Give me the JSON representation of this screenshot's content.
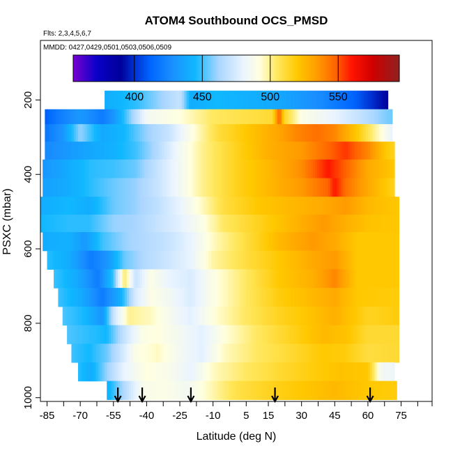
{
  "chart_data": {
    "type": "heatmap",
    "title": "ATOM4 Southbound OCS_PMSD",
    "flights_note": "Flts: 2,3,4,5,6,7",
    "dates_note": "MMDD: 0427,0429,0501,0503,0506,0509",
    "xlabel": "Latitude (deg N)",
    "ylabel": "PSXC (mbar)",
    "xlim": [
      -88,
      89
    ],
    "ylim": [
      1010,
      40
    ],
    "x_tick_labels": [
      "-85",
      "-70",
      "-55",
      "-40",
      "-25",
      "-10",
      "5",
      "15",
      "30",
      "45",
      "60",
      "75"
    ],
    "x_tick_values": [
      -85,
      -70,
      -55,
      -40,
      -25,
      -10,
      5,
      15,
      30,
      45,
      60,
      75
    ],
    "x_minor_ticks": [
      -85,
      -77.5,
      -70,
      -62.5,
      -55,
      -47.5,
      -40,
      -32.5,
      -25,
      -17.5,
      -10,
      -2.5,
      5,
      15,
      22.5,
      30,
      37.5,
      45,
      52.5,
      60,
      67.5,
      75,
      82.5,
      89
    ],
    "y_tick_labels": [
      "200",
      "400",
      "600",
      "800",
      "1000"
    ],
    "y_tick_values": [
      200,
      400,
      600,
      800,
      1000
    ],
    "colorbar": {
      "min": 355,
      "max": 595,
      "tick_labels": [
        "400",
        "450",
        "500",
        "550"
      ],
      "tick_values": [
        400,
        450,
        500,
        550
      ],
      "stops": [
        [
          355,
          "#7a00d0"
        ],
        [
          372,
          "#0a00c8"
        ],
        [
          390,
          "#00009a"
        ],
        [
          400,
          "#0030d0"
        ],
        [
          412,
          "#0066ff"
        ],
        [
          428,
          "#1a90ff"
        ],
        [
          445,
          "#10b8ff"
        ],
        [
          462,
          "#aad6ff"
        ],
        [
          480,
          "#eaf4ff"
        ],
        [
          492,
          "#ffffe0"
        ],
        [
          505,
          "#ffe860"
        ],
        [
          520,
          "#ffc800"
        ],
        [
          535,
          "#ff9a00"
        ],
        [
          548,
          "#ff6400"
        ],
        [
          560,
          "#ff1400"
        ],
        [
          575,
          "#d00000"
        ],
        [
          595,
          "#902020"
        ]
      ]
    },
    "bands": [
      {
        "p0": 175,
        "p1": 225,
        "lat_min": -59,
        "lat_max": 69,
        "knots": [
          [
            -59,
            440
          ],
          [
            -45,
            448
          ],
          [
            -25,
            470
          ],
          [
            -20,
            440
          ],
          [
            -8,
            445
          ],
          [
            20,
            438
          ],
          [
            40,
            425
          ],
          [
            55,
            410
          ],
          [
            65,
            395
          ],
          [
            69,
            390
          ]
        ]
      },
      {
        "p0": 225,
        "p1": 265,
        "lat_min": -86,
        "lat_max": 71,
        "knots": [
          [
            -86,
            410
          ],
          [
            -80,
            420
          ],
          [
            -70,
            432
          ],
          [
            -60,
            420
          ],
          [
            -55,
            430
          ],
          [
            -40,
            485
          ],
          [
            -25,
            492
          ],
          [
            -10,
            505
          ],
          [
            10,
            510
          ],
          [
            17,
            512
          ],
          [
            20,
            550
          ],
          [
            22,
            515
          ],
          [
            30,
            490
          ],
          [
            45,
            480
          ],
          [
            55,
            470
          ],
          [
            65,
            460
          ],
          [
            71,
            455
          ]
        ]
      },
      {
        "p0": 265,
        "p1": 312,
        "lat_min": -86,
        "lat_max": 71,
        "knots": [
          [
            -86,
            418
          ],
          [
            -78,
            430
          ],
          [
            -70,
            460
          ],
          [
            -60,
            438
          ],
          [
            -50,
            445
          ],
          [
            -40,
            460
          ],
          [
            -30,
            470
          ],
          [
            -20,
            490
          ],
          [
            -8,
            510
          ],
          [
            5,
            520
          ],
          [
            18,
            530
          ],
          [
            28,
            540
          ],
          [
            37,
            545
          ],
          [
            45,
            540
          ],
          [
            55,
            520
          ],
          [
            65,
            495
          ],
          [
            71,
            480
          ]
        ]
      },
      {
        "p0": 312,
        "p1": 360,
        "lat_min": -86,
        "lat_max": 72,
        "knots": [
          [
            -86,
            425
          ],
          [
            -75,
            432
          ],
          [
            -65,
            438
          ],
          [
            -55,
            442
          ],
          [
            -45,
            450
          ],
          [
            -35,
            465
          ],
          [
            -25,
            485
          ],
          [
            -15,
            500
          ],
          [
            0,
            515
          ],
          [
            15,
            528
          ],
          [
            30,
            535
          ],
          [
            40,
            545
          ],
          [
            50,
            555
          ],
          [
            60,
            540
          ],
          [
            68,
            520
          ],
          [
            72,
            515
          ]
        ]
      },
      {
        "p0": 360,
        "p1": 410,
        "lat_min": -87,
        "lat_max": 72,
        "knots": [
          [
            -87,
            430
          ],
          [
            -75,
            440
          ],
          [
            -65,
            448
          ],
          [
            -55,
            450
          ],
          [
            -45,
            455
          ],
          [
            -35,
            470
          ],
          [
            -25,
            485
          ],
          [
            -15,
            500
          ],
          [
            0,
            515
          ],
          [
            15,
            525
          ],
          [
            30,
            538
          ],
          [
            42,
            560
          ],
          [
            50,
            548
          ],
          [
            60,
            530
          ],
          [
            72,
            520
          ]
        ]
      },
      {
        "p0": 410,
        "p1": 460,
        "lat_min": -87,
        "lat_max": 72,
        "knots": [
          [
            -87,
            435
          ],
          [
            -75,
            440
          ],
          [
            -65,
            448
          ],
          [
            -55,
            455
          ],
          [
            -45,
            460
          ],
          [
            -35,
            470
          ],
          [
            -25,
            485
          ],
          [
            -15,
            500
          ],
          [
            0,
            515
          ],
          [
            15,
            525
          ],
          [
            30,
            535
          ],
          [
            42,
            548
          ],
          [
            45,
            560
          ],
          [
            50,
            545
          ],
          [
            60,
            530
          ],
          [
            72,
            515
          ]
        ]
      },
      {
        "p0": 460,
        "p1": 508,
        "lat_min": -88,
        "lat_max": 74,
        "knots": [
          [
            -88,
            440
          ],
          [
            -75,
            445
          ],
          [
            -66,
            440
          ],
          [
            -55,
            455
          ],
          [
            -45,
            460
          ],
          [
            -35,
            468
          ],
          [
            -25,
            480
          ],
          [
            -15,
            495
          ],
          [
            -5,
            510
          ],
          [
            10,
            520
          ],
          [
            25,
            525
          ],
          [
            40,
            530
          ],
          [
            50,
            535
          ],
          [
            60,
            525
          ],
          [
            74,
            520
          ]
        ]
      },
      {
        "p0": 508,
        "p1": 555,
        "lat_min": -88,
        "lat_max": 74,
        "knots": [
          [
            -88,
            445
          ],
          [
            -75,
            448
          ],
          [
            -66,
            448
          ],
          [
            -55,
            460
          ],
          [
            -45,
            462
          ],
          [
            -35,
            470
          ],
          [
            -25,
            478
          ],
          [
            -15,
            490
          ],
          [
            -5,
            505
          ],
          [
            10,
            515
          ],
          [
            25,
            525
          ],
          [
            40,
            535
          ],
          [
            50,
            528
          ],
          [
            60,
            522
          ],
          [
            74,
            520
          ]
        ]
      },
      {
        "p0": 555,
        "p1": 605,
        "lat_min": -87,
        "lat_max": 74,
        "knots": [
          [
            -87,
            440
          ],
          [
            -75,
            442
          ],
          [
            -68,
            432
          ],
          [
            -60,
            450
          ],
          [
            -50,
            460
          ],
          [
            -40,
            465
          ],
          [
            -30,
            470
          ],
          [
            -20,
            480
          ],
          [
            -10,
            495
          ],
          [
            5,
            510
          ],
          [
            20,
            525
          ],
          [
            35,
            535
          ],
          [
            45,
            530
          ],
          [
            55,
            520
          ],
          [
            74,
            520
          ]
        ]
      },
      {
        "p0": 605,
        "p1": 655,
        "lat_min": -85,
        "lat_max": 74,
        "knots": [
          [
            -85,
            448
          ],
          [
            -75,
            440
          ],
          [
            -65,
            420
          ],
          [
            -58,
            430
          ],
          [
            -50,
            455
          ],
          [
            -40,
            465
          ],
          [
            -30,
            472
          ],
          [
            -20,
            480
          ],
          [
            -10,
            498
          ],
          [
            5,
            510
          ],
          [
            20,
            520
          ],
          [
            35,
            530
          ],
          [
            45,
            535
          ],
          [
            55,
            520
          ],
          [
            74,
            520
          ]
        ]
      },
      {
        "p0": 655,
        "p1": 705,
        "lat_min": -82,
        "lat_max": 74,
        "knots": [
          [
            -82,
            450
          ],
          [
            -72,
            440
          ],
          [
            -62,
            420
          ],
          [
            -55,
            450
          ],
          [
            -50,
            505
          ],
          [
            -45,
            470
          ],
          [
            -38,
            490
          ],
          [
            -30,
            480
          ],
          [
            -20,
            475
          ],
          [
            -10,
            490
          ],
          [
            5,
            505
          ],
          [
            20,
            520
          ],
          [
            35,
            528
          ],
          [
            45,
            540
          ],
          [
            55,
            520
          ],
          [
            74,
            520
          ]
        ]
      },
      {
        "p0": 705,
        "p1": 755,
        "lat_min": -80,
        "lat_max": 74,
        "knots": [
          [
            -80,
            450
          ],
          [
            -70,
            440
          ],
          [
            -60,
            420
          ],
          [
            -52,
            440
          ],
          [
            -45,
            475
          ],
          [
            -38,
            490
          ],
          [
            -30,
            485
          ],
          [
            -20,
            475
          ],
          [
            -10,
            490
          ],
          [
            5,
            505
          ],
          [
            20,
            518
          ],
          [
            35,
            525
          ],
          [
            45,
            530
          ],
          [
            55,
            520
          ],
          [
            74,
            518
          ]
        ]
      },
      {
        "p0": 755,
        "p1": 805,
        "lat_min": -78,
        "lat_max": 74,
        "knots": [
          [
            -78,
            452
          ],
          [
            -68,
            445
          ],
          [
            -60,
            430
          ],
          [
            -55,
            470
          ],
          [
            -48,
            500
          ],
          [
            -38,
            495
          ],
          [
            -28,
            485
          ],
          [
            -20,
            478
          ],
          [
            -10,
            492
          ],
          [
            5,
            505
          ],
          [
            20,
            515
          ],
          [
            35,
            522
          ],
          [
            45,
            528
          ],
          [
            60,
            515
          ],
          [
            74,
            518
          ]
        ]
      },
      {
        "p0": 805,
        "p1": 855,
        "lat_min": -76,
        "lat_max": 74,
        "knots": [
          [
            -76,
            452
          ],
          [
            -66,
            448
          ],
          [
            -58,
            445
          ],
          [
            -50,
            470
          ],
          [
            -42,
            490
          ],
          [
            -35,
            492
          ],
          [
            -25,
            485
          ],
          [
            -15,
            478
          ],
          [
            -5,
            492
          ],
          [
            10,
            505
          ],
          [
            25,
            515
          ],
          [
            40,
            525
          ],
          [
            50,
            522
          ],
          [
            60,
            512
          ],
          [
            74,
            512
          ]
        ]
      },
      {
        "p0": 855,
        "p1": 905,
        "lat_min": -74,
        "lat_max": 74,
        "knots": [
          [
            -74,
            450
          ],
          [
            -66,
            445
          ],
          [
            -58,
            455
          ],
          [
            -52,
            470
          ],
          [
            -45,
            490
          ],
          [
            -35,
            495
          ],
          [
            -25,
            485
          ],
          [
            -15,
            478
          ],
          [
            -5,
            495
          ],
          [
            10,
            505
          ],
          [
            25,
            512
          ],
          [
            40,
            520
          ],
          [
            50,
            518
          ],
          [
            60,
            510
          ],
          [
            74,
            512
          ]
        ]
      },
      {
        "p0": 905,
        "p1": 955,
        "lat_min": -71,
        "lat_max": 72,
        "knots": [
          [
            -71,
            448
          ],
          [
            -65,
            440
          ],
          [
            -58,
            460
          ],
          [
            -50,
            480
          ],
          [
            -40,
            492
          ],
          [
            -30,
            488
          ],
          [
            -20,
            480
          ],
          [
            -10,
            495
          ],
          [
            5,
            505
          ],
          [
            20,
            512
          ],
          [
            35,
            518
          ],
          [
            48,
            522
          ],
          [
            60,
            520
          ],
          [
            66,
            485
          ],
          [
            72,
            482
          ]
        ]
      },
      {
        "p0": 955,
        "p1": 1005,
        "lat_min": -58,
        "lat_max": 73,
        "knots": [
          [
            -58,
            440
          ],
          [
            -50,
            465
          ],
          [
            -42,
            488
          ],
          [
            -32,
            490
          ],
          [
            -22,
            485
          ],
          [
            -12,
            495
          ],
          [
            0,
            508
          ],
          [
            15,
            515
          ],
          [
            30,
            520
          ],
          [
            45,
            525
          ],
          [
            60,
            520
          ],
          [
            73,
            518
          ]
        ]
      }
    ],
    "arrows_lat": [
      -53,
      -42,
      -20,
      18,
      61
    ]
  }
}
